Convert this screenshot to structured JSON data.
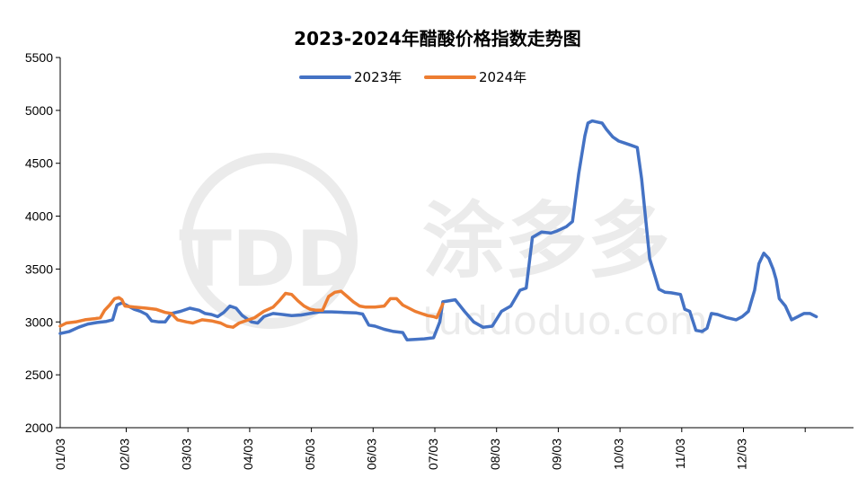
{
  "watermark": {
    "logo": "TDD",
    "cn": "涂多多",
    "url": "tuduoduo.com"
  },
  "chart_data": {
    "type": "line",
    "title": "2023-2024年醋酸价格指数走势图",
    "xlabel": "",
    "ylabel": "",
    "ylim": [
      2000,
      5500
    ],
    "yticks": [
      2000,
      2500,
      3000,
      3500,
      4000,
      4500,
      5000,
      5500
    ],
    "xlim": [
      0,
      12
    ],
    "x_tick_labels": [
      "01/03",
      "02/03",
      "03/03",
      "04/03",
      "05/03",
      "06/03",
      "07/03",
      "08/03",
      "09/03",
      "10/03",
      "11/03",
      "12/03"
    ],
    "grid": false,
    "legend_position": "top-center",
    "series": [
      {
        "name": "2023年",
        "color": "#4472C4",
        "points": [
          [
            0.0,
            2890
          ],
          [
            0.15,
            2910
          ],
          [
            0.3,
            2950
          ],
          [
            0.45,
            2980
          ],
          [
            0.6,
            2995
          ],
          [
            0.75,
            3005
          ],
          [
            0.85,
            3020
          ],
          [
            0.92,
            3160
          ],
          [
            1.0,
            3180
          ],
          [
            1.1,
            3150
          ],
          [
            1.2,
            3120
          ],
          [
            1.3,
            3100
          ],
          [
            1.4,
            3070
          ],
          [
            1.48,
            3010
          ],
          [
            1.6,
            3000
          ],
          [
            1.7,
            3000
          ],
          [
            1.8,
            3080
          ],
          [
            1.95,
            3100
          ],
          [
            2.1,
            3130
          ],
          [
            2.25,
            3110
          ],
          [
            2.35,
            3080
          ],
          [
            2.45,
            3070
          ],
          [
            2.55,
            3050
          ],
          [
            2.65,
            3090
          ],
          [
            2.75,
            3150
          ],
          [
            2.85,
            3130
          ],
          [
            2.95,
            3060
          ],
          [
            3.1,
            3000
          ],
          [
            3.2,
            2990
          ],
          [
            3.3,
            3050
          ],
          [
            3.45,
            3080
          ],
          [
            3.6,
            3070
          ],
          [
            3.75,
            3060
          ],
          [
            3.9,
            3065
          ],
          [
            4.05,
            3080
          ],
          [
            4.2,
            3095
          ],
          [
            4.4,
            3095
          ],
          [
            4.6,
            3090
          ],
          [
            4.8,
            3085
          ],
          [
            4.9,
            3075
          ],
          [
            5.0,
            2970
          ],
          [
            5.1,
            2960
          ],
          [
            5.25,
            2930
          ],
          [
            5.4,
            2910
          ],
          [
            5.55,
            2900
          ],
          [
            5.62,
            2830
          ],
          [
            5.75,
            2835
          ],
          [
            5.9,
            2840
          ],
          [
            6.05,
            2850
          ],
          [
            6.15,
            3000
          ],
          [
            6.2,
            3190
          ],
          [
            6.4,
            3210
          ],
          [
            6.55,
            3100
          ],
          [
            6.7,
            3000
          ],
          [
            6.85,
            2950
          ],
          [
            7.0,
            2960
          ],
          [
            7.15,
            3100
          ],
          [
            7.3,
            3150
          ],
          [
            7.45,
            3300
          ],
          [
            7.55,
            3320
          ],
          [
            7.65,
            3800
          ],
          [
            7.8,
            3850
          ],
          [
            7.95,
            3840
          ],
          [
            8.05,
            3860
          ],
          [
            8.2,
            3900
          ],
          [
            8.3,
            3950
          ],
          [
            8.4,
            4400
          ],
          [
            8.5,
            4760
          ],
          [
            8.55,
            4880
          ],
          [
            8.62,
            4900
          ],
          [
            8.7,
            4890
          ],
          [
            8.78,
            4880
          ],
          [
            8.85,
            4820
          ],
          [
            8.95,
            4750
          ],
          [
            9.05,
            4710
          ],
          [
            9.15,
            4690
          ],
          [
            9.25,
            4670
          ],
          [
            9.35,
            4650
          ],
          [
            9.42,
            4350
          ],
          [
            9.55,
            3600
          ],
          [
            9.7,
            3310
          ],
          [
            9.8,
            3280
          ],
          [
            9.9,
            3275
          ],
          [
            10.05,
            3260
          ],
          [
            10.12,
            3120
          ],
          [
            10.2,
            3100
          ],
          [
            10.3,
            2920
          ],
          [
            10.4,
            2910
          ],
          [
            10.48,
            2940
          ],
          [
            10.55,
            3080
          ],
          [
            10.65,
            3070
          ],
          [
            10.8,
            3040
          ],
          [
            10.95,
            3020
          ],
          [
            11.05,
            3050
          ],
          [
            11.15,
            3100
          ],
          [
            11.25,
            3300
          ],
          [
            11.32,
            3550
          ],
          [
            11.4,
            3650
          ],
          [
            11.48,
            3600
          ],
          [
            11.55,
            3500
          ],
          [
            11.6,
            3400
          ],
          [
            11.65,
            3220
          ],
          [
            11.75,
            3150
          ],
          [
            11.85,
            3020
          ],
          [
            11.95,
            3050
          ],
          [
            12.05,
            3080
          ],
          [
            12.15,
            3080
          ],
          [
            12.25,
            3050
          ]
        ]
      },
      {
        "name": "2024年",
        "color": "#ED7D31",
        "points": [
          [
            0.0,
            2960
          ],
          [
            0.1,
            2990
          ],
          [
            0.25,
            3000
          ],
          [
            0.4,
            3020
          ],
          [
            0.55,
            3030
          ],
          [
            0.65,
            3040
          ],
          [
            0.72,
            3110
          ],
          [
            0.8,
            3160
          ],
          [
            0.88,
            3220
          ],
          [
            0.95,
            3230
          ],
          [
            1.0,
            3210
          ],
          [
            1.05,
            3150
          ],
          [
            1.2,
            3140
          ],
          [
            1.4,
            3130
          ],
          [
            1.55,
            3120
          ],
          [
            1.7,
            3090
          ],
          [
            1.8,
            3080
          ],
          [
            1.9,
            3020
          ],
          [
            2.05,
            3000
          ],
          [
            2.15,
            2990
          ],
          [
            2.3,
            3020
          ],
          [
            2.45,
            3010
          ],
          [
            2.6,
            2990
          ],
          [
            2.7,
            2960
          ],
          [
            2.8,
            2950
          ],
          [
            2.9,
            2990
          ],
          [
            3.0,
            3010
          ],
          [
            3.15,
            3040
          ],
          [
            3.3,
            3100
          ],
          [
            3.45,
            3140
          ],
          [
            3.55,
            3200
          ],
          [
            3.65,
            3270
          ],
          [
            3.75,
            3260
          ],
          [
            3.85,
            3200
          ],
          [
            3.95,
            3150
          ],
          [
            4.05,
            3120
          ],
          [
            4.15,
            3110
          ],
          [
            4.25,
            3110
          ],
          [
            4.35,
            3240
          ],
          [
            4.45,
            3280
          ],
          [
            4.55,
            3290
          ],
          [
            4.65,
            3240
          ],
          [
            4.75,
            3190
          ],
          [
            4.85,
            3150
          ],
          [
            4.95,
            3140
          ],
          [
            5.1,
            3140
          ],
          [
            5.25,
            3150
          ],
          [
            5.35,
            3220
          ],
          [
            5.45,
            3220
          ],
          [
            5.55,
            3160
          ],
          [
            5.65,
            3130
          ],
          [
            5.75,
            3100
          ],
          [
            5.85,
            3080
          ],
          [
            5.95,
            3060
          ],
          [
            6.05,
            3050
          ],
          [
            6.1,
            3040
          ],
          [
            6.2,
            3170
          ]
        ]
      }
    ]
  }
}
